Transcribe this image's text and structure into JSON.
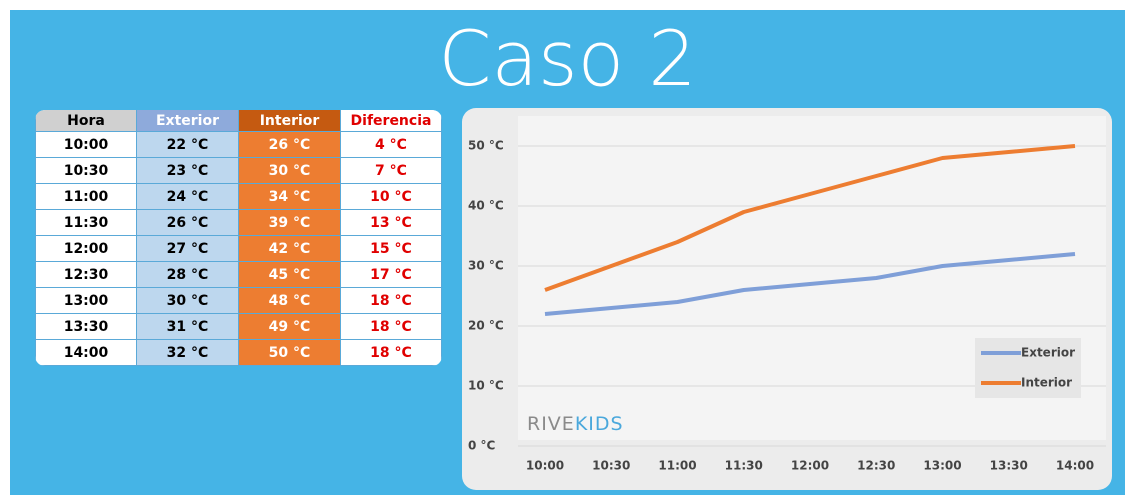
{
  "title": "Caso 2",
  "table": {
    "header": [
      "Hora",
      "Exterior",
      "Interior",
      "Diferencia"
    ],
    "rows": [
      [
        "10:00",
        "22 °C",
        "26 °C",
        "4 °C"
      ],
      [
        "10:30",
        "23 °C",
        "30 °C",
        "7 °C"
      ],
      [
        "11:00",
        "24 °C",
        "34 °C",
        "10 °C"
      ],
      [
        "11:30",
        "26 °C",
        "39 °C",
        "13 °C"
      ],
      [
        "12:00",
        "27 °C",
        "42 °C",
        "15 °C"
      ],
      [
        "12:30",
        "28 °C",
        "45 °C",
        "17 °C"
      ],
      [
        "13:00",
        "30 °C",
        "48 °C",
        "18 °C"
      ],
      [
        "13:30",
        "31 °C",
        "49 °C",
        "18 °C"
      ],
      [
        "14:00",
        "32 °C",
        "50 °C",
        "18 °C"
      ]
    ]
  },
  "chart_data": {
    "type": "line",
    "categories": [
      "10:00",
      "10:30",
      "11:00",
      "11:30",
      "12:00",
      "12:30",
      "13:00",
      "13:30",
      "14:00"
    ],
    "series": [
      {
        "name": "Exterior",
        "color": "#7f9fd8",
        "values": [
          22,
          23,
          24,
          26,
          27,
          28,
          30,
          31,
          32
        ]
      },
      {
        "name": "Interior",
        "color": "#ed7d31",
        "values": [
          26,
          30,
          34,
          39,
          42,
          45,
          48,
          49,
          50
        ]
      }
    ],
    "ylim": [
      0,
      50
    ],
    "yticks": [
      {
        "value": 0,
        "label": "0 °C"
      },
      {
        "value": 10,
        "label": "10 °C"
      },
      {
        "value": 20,
        "label": "20 °C"
      },
      {
        "value": 30,
        "label": "30 °C"
      },
      {
        "value": 40,
        "label": "40 °C"
      },
      {
        "value": 50,
        "label": "50 °C"
      }
    ],
    "grid": true,
    "legend": "bottom-right",
    "watermark": [
      "RIVE",
      "KIDS"
    ]
  }
}
